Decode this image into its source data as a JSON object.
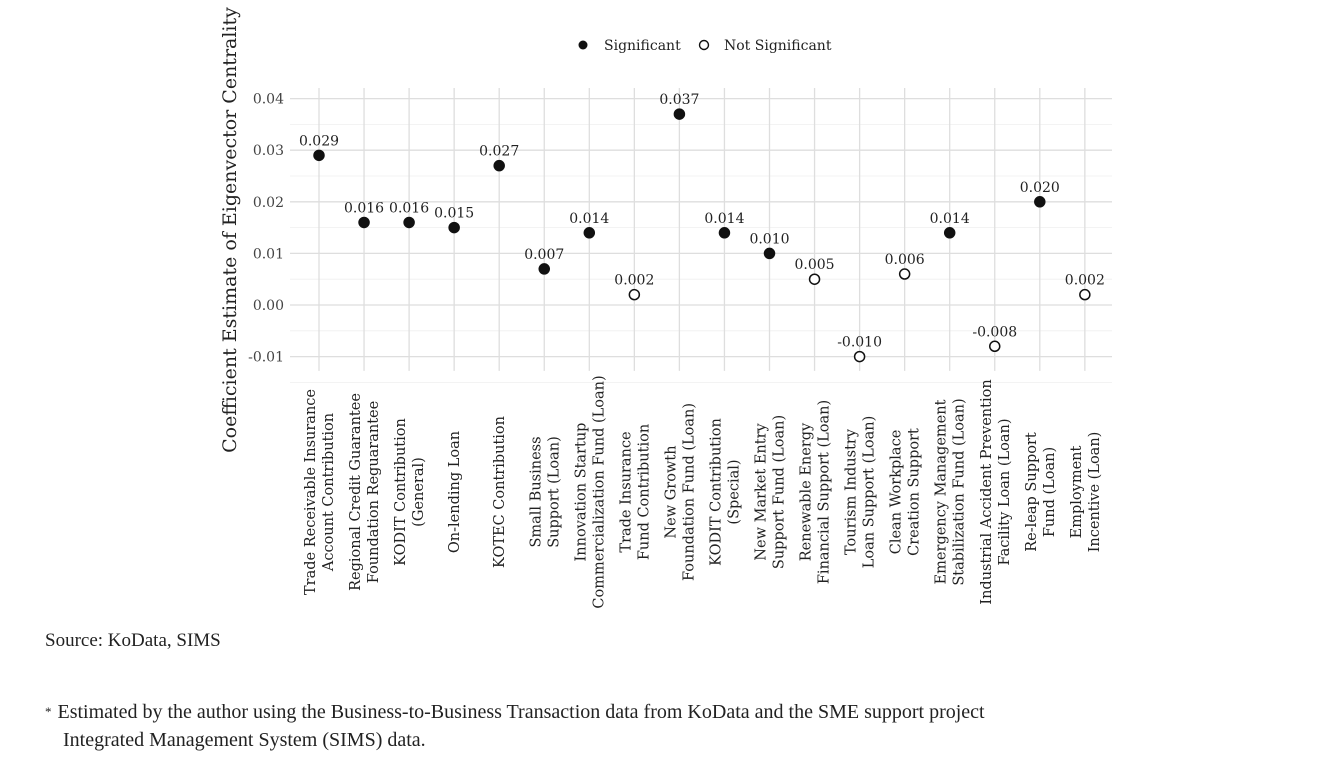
{
  "chart_data": {
    "type": "scatter",
    "title": "",
    "xlabel": "",
    "ylabel": "Coefficient Estimate of Eigenvector Centrality",
    "ylim": [
      -0.012,
      0.041
    ],
    "yticks": [
      -0.01,
      0.0,
      0.01,
      0.02,
      0.03,
      0.04
    ],
    "ytick_labels": [
      "-0.01",
      "0.00",
      "0.01",
      "0.02",
      "0.03",
      "0.04"
    ],
    "grid": true,
    "legend": {
      "placement": "top",
      "entries": [
        {
          "label": "Significant",
          "marker": "filled-circle"
        },
        {
          "label": "Not Significant",
          "marker": "open-circle"
        }
      ]
    },
    "points": [
      {
        "category": [
          "Trade Receivable Insurance",
          "Account Contribution"
        ],
        "value": 0.029,
        "label": "0.029",
        "significant": true
      },
      {
        "category": [
          "Regional Credit Guarantee",
          "Foundation Reguarantee"
        ],
        "value": 0.016,
        "label": "0.016",
        "significant": true
      },
      {
        "category": [
          "KODIT Contribution",
          "(General)"
        ],
        "value": 0.016,
        "label": "0.016",
        "significant": true
      },
      {
        "category": [
          "On-lending Loan"
        ],
        "value": 0.015,
        "label": "0.015",
        "significant": true
      },
      {
        "category": [
          "KOTEC Contribution"
        ],
        "value": 0.027,
        "label": "0.027",
        "significant": true
      },
      {
        "category": [
          "Small Business",
          "Support (Loan)"
        ],
        "value": 0.007,
        "label": "0.007",
        "significant": true
      },
      {
        "category": [
          "Innovation Startup",
          "Commercialization Fund (Loan)"
        ],
        "value": 0.014,
        "label": "0.014",
        "significant": true
      },
      {
        "category": [
          "Trade Insurance",
          "Fund Contribution"
        ],
        "value": 0.002,
        "label": "0.002",
        "significant": false
      },
      {
        "category": [
          "New Growth",
          "Foundation Fund (Loan)"
        ],
        "value": 0.037,
        "label": "0.037",
        "significant": true
      },
      {
        "category": [
          "KODIT Contribution",
          "(Special)"
        ],
        "value": 0.014,
        "label": "0.014",
        "significant": true
      },
      {
        "category": [
          "New Market Entry",
          "Support Fund (Loan)"
        ],
        "value": 0.01,
        "label": "0.010",
        "significant": true
      },
      {
        "category": [
          "Renewable Energy",
          "Financial Support (Loan)"
        ],
        "value": 0.005,
        "label": "0.005",
        "significant": false
      },
      {
        "category": [
          "Tourism Industry",
          "Loan Support (Loan)"
        ],
        "value": -0.01,
        "label": "-0.010",
        "significant": false
      },
      {
        "category": [
          "Clean Workplace",
          "Creation Support"
        ],
        "value": 0.006,
        "label": "0.006",
        "significant": false
      },
      {
        "category": [
          "Emergency Management",
          "Stabilization Fund (Loan)"
        ],
        "value": 0.014,
        "label": "0.014",
        "significant": true
      },
      {
        "category": [
          "Industrial Accident Prevention",
          "Facility Loan (Loan)"
        ],
        "value": -0.008,
        "label": "-0.008",
        "significant": false
      },
      {
        "category": [
          "Re-leap Support",
          "Fund (Loan)"
        ],
        "value": 0.02,
        "label": "0.020",
        "significant": true
      },
      {
        "category": [
          "Employment",
          "Incentive (Loan)"
        ],
        "value": 0.002,
        "label": "0.002",
        "significant": false
      }
    ]
  },
  "source": "Source: KoData, SIMS",
  "footnote": {
    "mark": "*",
    "line1": "Estimated by the author using the Business-to-Business Transaction data from KoData and the SME support project",
    "line2": "Integrated Management System (SIMS) data."
  }
}
